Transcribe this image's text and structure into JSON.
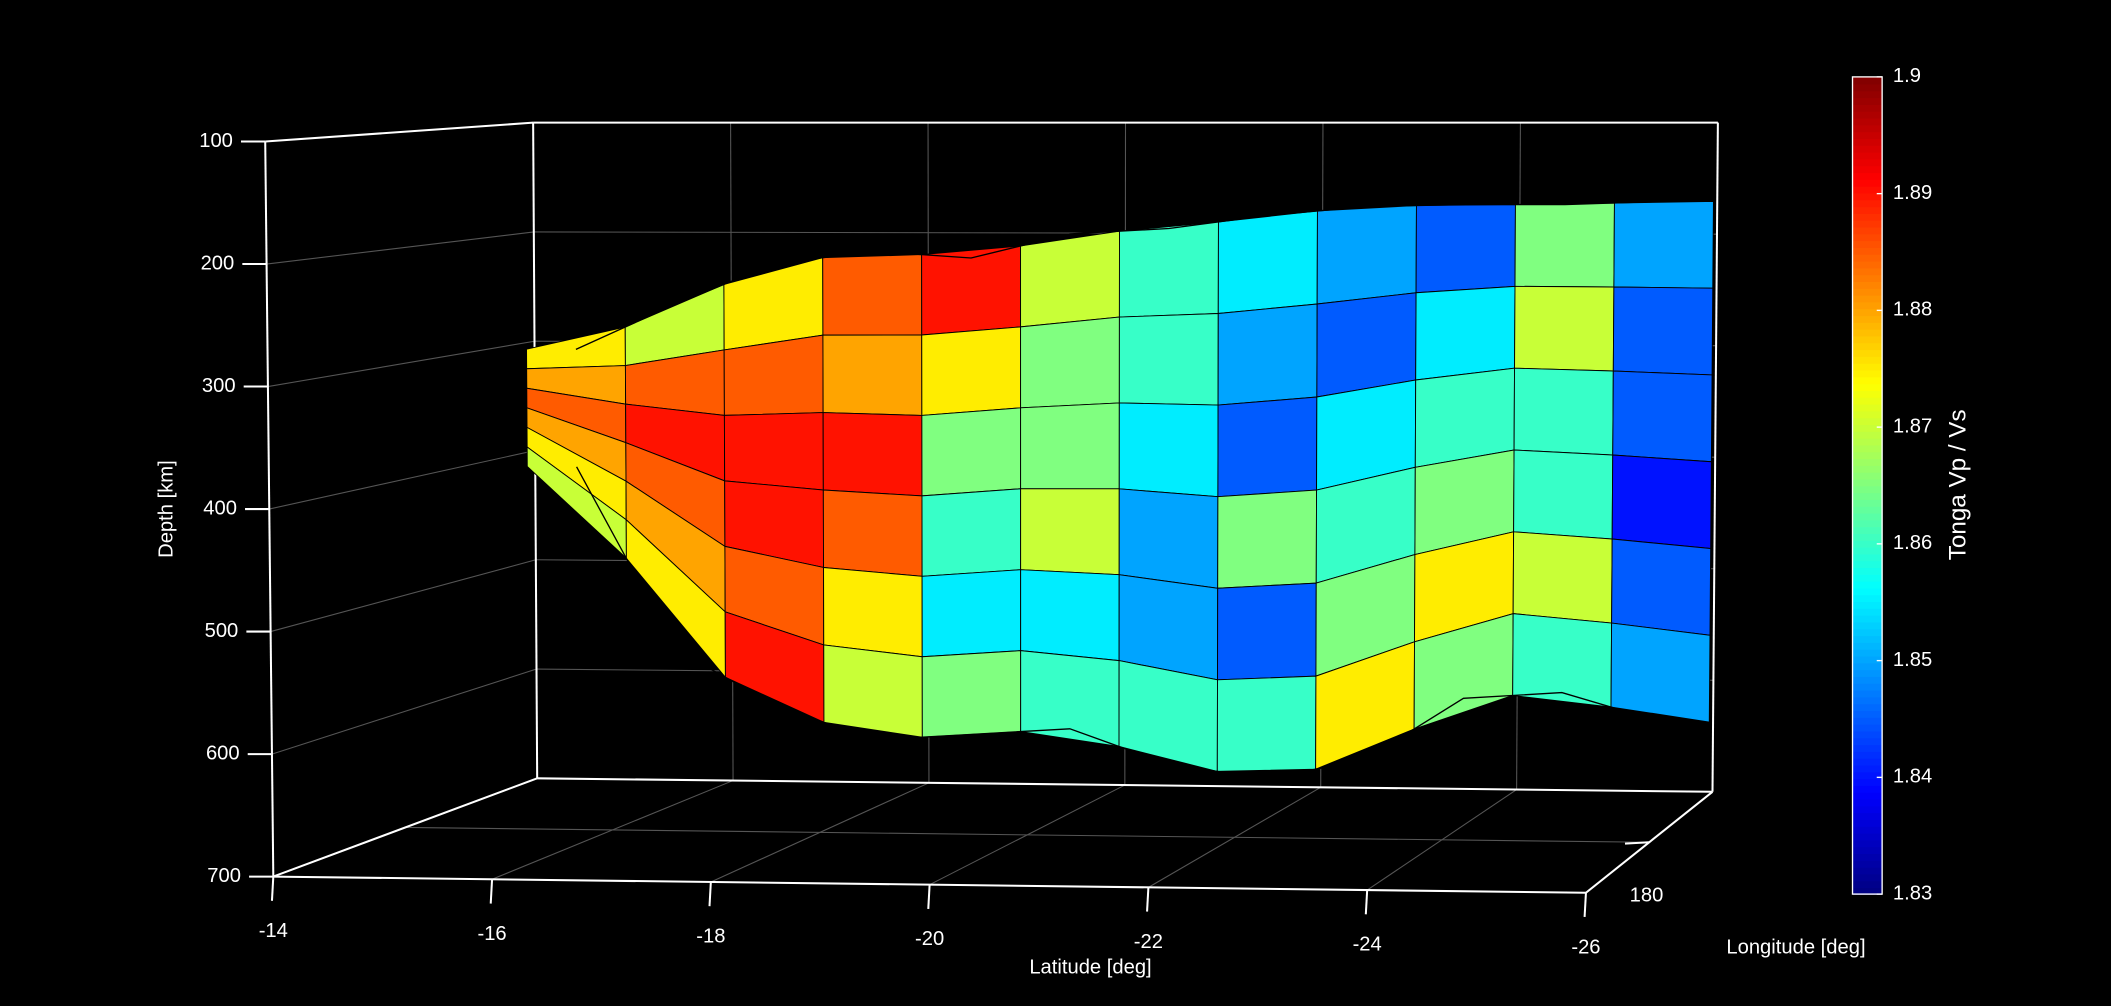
{
  "chart_data": {
    "type": "surface3d",
    "xlabel": "Latitude [deg]",
    "ylabel": "Longitude [deg]",
    "zlabel": "Depth [km]",
    "colorbar_label": "Tonga  Vp / Vs",
    "xlim": [
      -14,
      -26
    ],
    "xticks": [
      -14,
      -16,
      -18,
      -20,
      -22,
      -24,
      -26
    ],
    "ylim": [
      179,
      181
    ],
    "yticks": [
      180
    ],
    "zlim": [
      100,
      700
    ],
    "zticks": [
      100,
      200,
      300,
      400,
      500,
      600,
      700
    ],
    "clim": [
      1.83,
      1.9
    ],
    "cticks": [
      1.83,
      1.84,
      1.85,
      1.86,
      1.87,
      1.88,
      1.89,
      1.9
    ],
    "colormap": "jet",
    "grid": true,
    "surface": {
      "latitudes": [
        -14.5,
        -15.5,
        -16.5,
        -17.5,
        -18.5,
        -19.5,
        -20.5,
        -21.5,
        -22.5,
        -23.5,
        -24.5,
        -25.5
      ],
      "depth_top": [
        306,
        265,
        228,
        216,
        222,
        200,
        195,
        183,
        175,
        173,
        173,
        170
      ],
      "depth_bottom": [
        413,
        579,
        628,
        659,
        653,
        647,
        678,
        690,
        672,
        616,
        610,
        635
      ],
      "values": [
        [
          1.875,
          1.88,
          1.885,
          1.88,
          1.875,
          1.87
        ],
        [
          1.87,
          1.885,
          1.89,
          1.885,
          1.88,
          1.875
        ],
        [
          1.875,
          1.885,
          1.89,
          1.89,
          1.885,
          1.89
        ],
        [
          1.885,
          1.88,
          1.89,
          1.885,
          1.875,
          1.87
        ],
        [
          1.89,
          1.875,
          1.865,
          1.86,
          1.855,
          1.865
        ],
        [
          1.87,
          1.865,
          1.865,
          1.87,
          1.855,
          1.86
        ],
        [
          1.86,
          1.86,
          1.855,
          1.85,
          1.85,
          1.86
        ],
        [
          1.855,
          1.85,
          1.845,
          1.865,
          1.845,
          1.86
        ],
        [
          1.85,
          1.845,
          1.855,
          1.86,
          1.865,
          1.875
        ],
        [
          1.845,
          1.855,
          1.86,
          1.865,
          1.875,
          1.865
        ],
        [
          1.865,
          1.87,
          1.86,
          1.86,
          1.87,
          1.86
        ],
        [
          1.85,
          1.845,
          1.845,
          1.84,
          1.845,
          1.85
        ]
      ]
    }
  }
}
